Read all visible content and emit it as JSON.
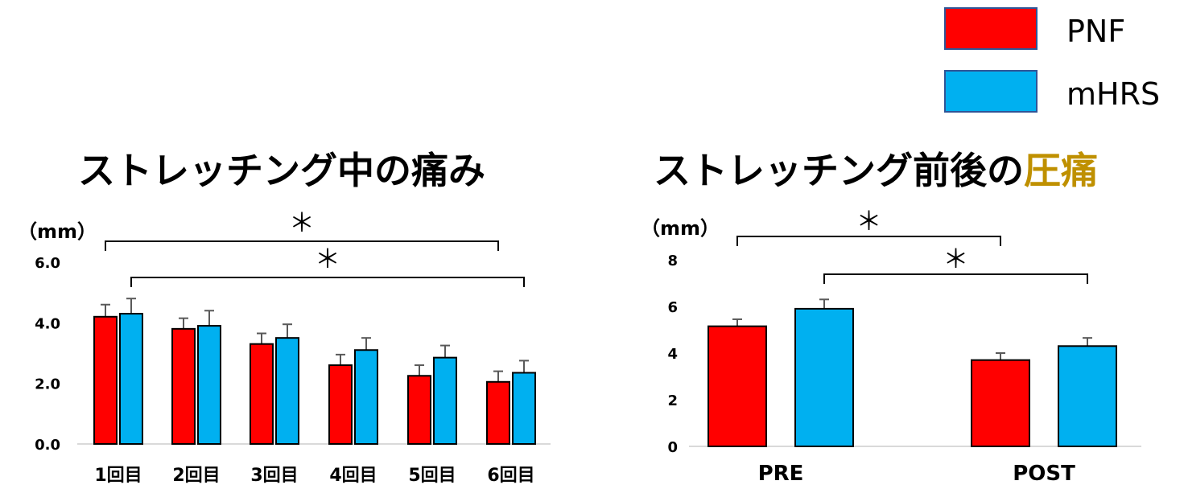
{
  "legend": {
    "items": [
      {
        "label": "PNF",
        "color": "#ff0000"
      },
      {
        "label": "mHRS",
        "color": "#00b0f0"
      }
    ]
  },
  "colors": {
    "axis": "#d9d9d9",
    "errorbar": "#595959",
    "highlight": "#bf9000"
  },
  "chart_data": [
    {
      "type": "bar",
      "title": "ストレッチング中の痛み",
      "ylabel": "（mm）",
      "ylim": [
        0,
        6
      ],
      "yticks": [
        "0.0",
        "2.0",
        "4.0",
        "6.0"
      ],
      "ytick_values": [
        0,
        2,
        4,
        6
      ],
      "categories": [
        "1回目",
        "2回目",
        "3回目",
        "4回目",
        "5回目",
        "6回目"
      ],
      "series": [
        {
          "name": "PNF",
          "values": [
            4.2,
            3.8,
            3.3,
            2.6,
            2.25,
            2.05
          ],
          "errors": [
            0.4,
            0.35,
            0.35,
            0.35,
            0.35,
            0.35
          ]
        },
        {
          "name": "mHRS",
          "values": [
            4.3,
            3.9,
            3.5,
            3.1,
            2.85,
            2.35
          ],
          "errors": [
            0.5,
            0.5,
            0.45,
            0.4,
            0.4,
            0.4
          ]
        }
      ],
      "annotations": [
        {
          "text": "＊",
          "from_category": 0,
          "to_category": 5,
          "series_from": 0,
          "series_to": 0
        },
        {
          "text": "＊",
          "from_category": 0,
          "to_category": 5,
          "series_from": 1,
          "series_to": 1
        }
      ]
    },
    {
      "type": "bar",
      "title_parts": [
        "ストレッチング前後の",
        "圧痛"
      ],
      "ylabel": "（mm）",
      "ylim": [
        0,
        8
      ],
      "yticks": [
        "0",
        "2",
        "4",
        "6",
        "8"
      ],
      "ytick_values": [
        0,
        2,
        4,
        6,
        8
      ],
      "categories": [
        "PRE",
        "POST"
      ],
      "series": [
        {
          "name": "PNF",
          "values": [
            5.15,
            3.7
          ],
          "errors": [
            0.3,
            0.3
          ]
        },
        {
          "name": "mHRS",
          "values": [
            5.9,
            4.3
          ],
          "errors": [
            0.4,
            0.35
          ]
        }
      ],
      "annotations": [
        {
          "text": "＊",
          "from_category": 0,
          "to_category": 1,
          "series_from": 0,
          "series_to": 0
        },
        {
          "text": "＊",
          "from_category": 0,
          "to_category": 1,
          "series_from": 1,
          "series_to": 1
        }
      ]
    }
  ]
}
